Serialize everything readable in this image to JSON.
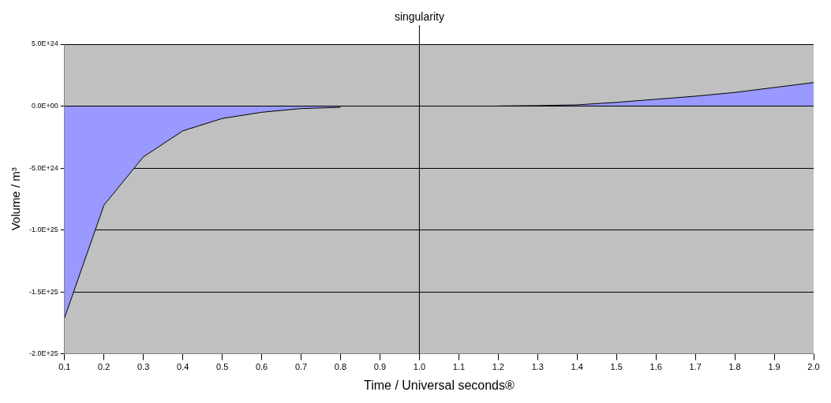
{
  "chart_data": {
    "type": "area",
    "xlabel": "Time / Universal seconds®",
    "ylabel": "Volume / m³",
    "x": [
      0.1,
      0.2,
      0.3,
      0.4,
      0.5,
      0.6,
      0.7,
      0.8,
      0.9,
      1.0,
      1.1,
      1.2,
      1.3,
      1.4,
      1.5,
      1.6,
      1.7,
      1.8,
      1.9,
      2.0
    ],
    "series": [
      {
        "color": "#9999ff",
        "values": [
          -1.71e+25,
          -8e+24,
          -4.1e+24,
          -2e+24,
          -1e+24,
          -5e+23,
          -2e+23,
          -1e+23,
          null,
          null,
          null,
          1e+22,
          4e+22,
          1e+23,
          3e+23,
          5.5e+23,
          8e+23,
          1.1e+24,
          1.5e+24,
          1.9e+24
        ]
      }
    ],
    "xlim": [
      0.1,
      2.0
    ],
    "ylim": [
      -2e+25,
      5e+24
    ],
    "xticks": [
      0.1,
      0.2,
      0.3,
      0.4,
      0.5,
      0.6,
      0.7,
      0.8,
      0.9,
      {
        "value": 1.0,
        "label": "1.0"
      },
      1.1,
      1.2,
      1.3,
      1.4,
      1.5,
      1.6,
      1.7,
      1.8,
      1.9,
      {
        "value": 2.0,
        "label": "2.0"
      }
    ],
    "yticks": [
      {
        "value": 5e+24,
        "label": "5.0E+24"
      },
      {
        "value": 0,
        "label": "0.0E+00"
      },
      {
        "value": -5e+24,
        "label": "-5.0E+24"
      },
      {
        "value": -1e+25,
        "label": "-1.0E+25"
      },
      {
        "value": -1.5e+25,
        "label": "-1.5E+25"
      },
      {
        "value": -2e+25,
        "label": "-2.0E+25"
      }
    ],
    "grid": "y",
    "legend": false,
    "marker": "none",
    "ref_lines": [
      {
        "axis": "x",
        "value": 1.0,
        "label": "singularity",
        "color": "#000000"
      }
    ]
  }
}
